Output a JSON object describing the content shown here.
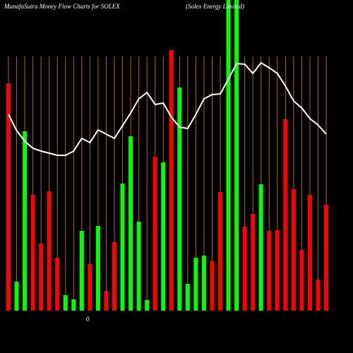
{
  "chart_data": {
    "type": "bar",
    "title": "MunafaSutra  Money Flow  Charts for SOLEX",
    "subtitle": "(Solex Energy Limited)",
    "annotation": "0",
    "categories": [
      null,
      null,
      null,
      null,
      null,
      null,
      null,
      null,
      null,
      null,
      null,
      null,
      null,
      null,
      null,
      null,
      null,
      null,
      null,
      null,
      null,
      null,
      null,
      null,
      null,
      null,
      null,
      null,
      null,
      null,
      null,
      null,
      null,
      null,
      null,
      null,
      null,
      null,
      null,
      null
    ],
    "values": [
      322,
      41,
      254,
      164,
      95,
      169,
      75,
      22,
      16,
      113,
      66,
      120,
      28,
      97,
      180,
      247,
      126,
      15,
      218,
      210,
      369,
      316,
      38,
      75,
      78,
      70,
      168,
      440,
      440,
      119,
      137,
      179,
      113,
      114,
      271,
      172,
      86,
      164,
      44,
      150
    ],
    "colors": [
      "#ff0000",
      "#00ff00",
      "#00ff00",
      "#ff0000",
      "#ff0000",
      "#ff0000",
      "#ff0000",
      "#00ff00",
      "#00ff00",
      "#00ff00",
      "#ff0000",
      "#00ff00",
      "#ff0000",
      "#ff0000",
      "#00ff00",
      "#00ff00",
      "#00ff00",
      "#00ff00",
      "#ff0000",
      "#00ff00",
      "#ff0000",
      "#00ff00",
      "#00ff00",
      "#00ff00",
      "#00ff00",
      "#ff0000",
      "#ff0000",
      "#00ff00",
      "#00ff00",
      "#ff0000",
      "#ff0000",
      "#00ff00",
      "#ff0000",
      "#ff0000",
      "#ff0000",
      "#ff0000",
      "#ff0000",
      "#ff0000",
      "#ff0000",
      "#ff0000"
    ],
    "line_values": [
      278,
      255,
      240,
      230,
      226,
      223,
      220,
      220,
      226,
      244,
      238,
      256,
      250,
      244,
      262,
      280,
      300,
      309,
      292,
      294,
      274,
      260,
      258,
      278,
      300,
      306,
      307,
      328,
      350,
      349,
      336,
      351,
      344,
      336,
      318,
      297,
      287,
      272,
      263,
      250
    ],
    "line_color": "#ffffff",
    "grid_color": "#b8660b",
    "grid": true,
    "ylim": [
      0,
      440
    ]
  }
}
